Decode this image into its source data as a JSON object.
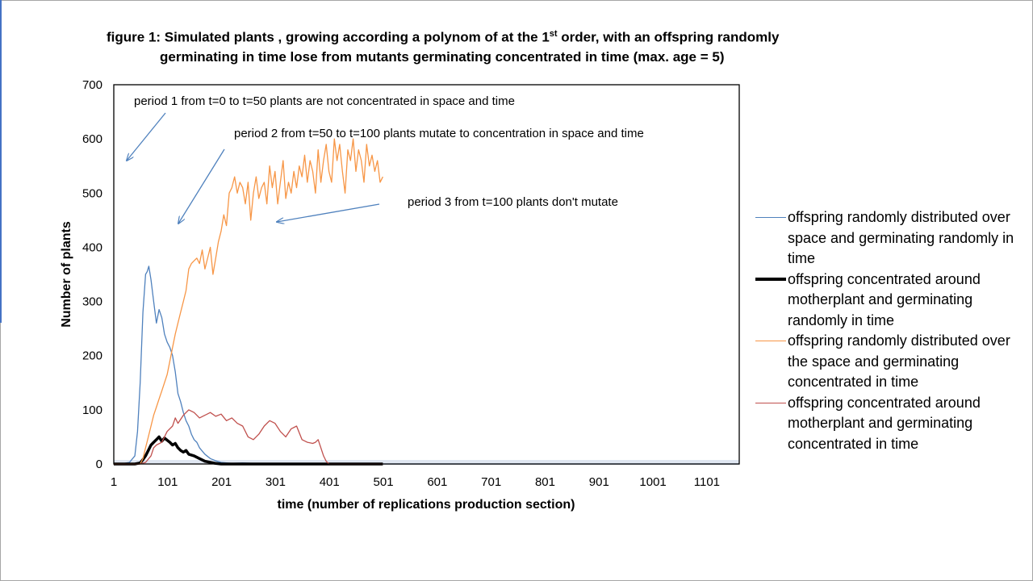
{
  "title": {
    "line1_pre": "figure 1: Simulated  plants , growing according a polynom of at the 1",
    "line1_sup": "st",
    "line1_post": " order, with an offspring randomly",
    "line2": "germinating  in time lose from mutants germinating concentrated  in time  (max. age = 5)"
  },
  "chart_data": {
    "type": "line",
    "xlabel": "time (number of replications production section)",
    "ylabel": "Number of plants",
    "x_tick_labels": [
      "1",
      "101",
      "201",
      "301",
      "401",
      "501",
      "601",
      "701",
      "801",
      "901",
      "1001",
      "1101"
    ],
    "y_tick_labels": [
      "0",
      "100",
      "200",
      "300",
      "400",
      "500",
      "600",
      "700"
    ],
    "xlim": [
      1,
      1161
    ],
    "ylim": [
      0,
      700
    ],
    "series": [
      {
        "name": "offspring randomly distributed over space and germinating randomly in time",
        "color": "#4f81bd",
        "width": 1.3,
        "x": [
          1,
          10,
          20,
          30,
          40,
          45,
          50,
          55,
          60,
          63,
          66,
          70,
          75,
          80,
          85,
          90,
          95,
          100,
          105,
          110,
          115,
          120,
          125,
          130,
          135,
          140,
          145,
          150,
          155,
          160,
          170,
          180,
          190,
          200,
          210,
          220,
          240,
          260,
          280,
          300,
          400,
          500,
          600,
          700,
          800,
          900,
          1000,
          1100,
          1161
        ],
        "y": [
          0,
          0,
          1,
          3,
          15,
          60,
          150,
          280,
          350,
          355,
          365,
          340,
          300,
          260,
          285,
          270,
          240,
          225,
          215,
          200,
          170,
          130,
          115,
          95,
          80,
          70,
          55,
          45,
          40,
          30,
          18,
          10,
          6,
          3,
          2,
          1,
          2,
          1,
          0,
          0,
          0,
          0,
          0,
          0,
          0,
          0,
          0,
          0,
          0
        ]
      },
      {
        "name": "offspring concentrated around motherplant and germinating randomly in time",
        "color": "#000000",
        "width": 3.5,
        "x": [
          1,
          40,
          50,
          55,
          60,
          65,
          70,
          75,
          80,
          85,
          90,
          95,
          100,
          105,
          110,
          115,
          120,
          125,
          130,
          135,
          140,
          150,
          160,
          170,
          180,
          190,
          200,
          210,
          250,
          300,
          400,
          500
        ],
        "y": [
          0,
          0,
          2,
          8,
          15,
          25,
          35,
          40,
          45,
          50,
          42,
          48,
          44,
          40,
          35,
          38,
          30,
          25,
          22,
          25,
          18,
          15,
          10,
          5,
          3,
          1,
          0,
          0,
          0,
          0,
          0,
          0
        ]
      },
      {
        "name": "offspring randomly distributed over the space and germinating concentrated in time",
        "color": "#f79646",
        "width": 1.3,
        "x": [
          1,
          50,
          55,
          60,
          65,
          70,
          75,
          80,
          85,
          90,
          95,
          100,
          105,
          110,
          115,
          120,
          125,
          130,
          135,
          140,
          145,
          150,
          155,
          160,
          165,
          170,
          175,
          180,
          185,
          190,
          195,
          200,
          205,
          210,
          215,
          220,
          225,
          230,
          235,
          240,
          245,
          250,
          255,
          260,
          265,
          270,
          275,
          280,
          285,
          290,
          295,
          300,
          305,
          310,
          315,
          320,
          325,
          330,
          335,
          340,
          345,
          350,
          355,
          360,
          365,
          370,
          375,
          380,
          385,
          390,
          395,
          400,
          405,
          410,
          415,
          420,
          425,
          430,
          435,
          440,
          445,
          450,
          455,
          460,
          465,
          470,
          475,
          480,
          485,
          490,
          495,
          500
        ],
        "y": [
          0,
          0,
          10,
          30,
          50,
          70,
          90,
          105,
          120,
          135,
          150,
          165,
          190,
          215,
          240,
          260,
          280,
          300,
          320,
          360,
          370,
          375,
          380,
          370,
          395,
          360,
          380,
          400,
          350,
          380,
          410,
          430,
          460,
          440,
          500,
          510,
          530,
          500,
          520,
          510,
          480,
          520,
          450,
          500,
          530,
          490,
          510,
          520,
          480,
          550,
          510,
          540,
          480,
          520,
          560,
          490,
          520,
          500,
          540,
          510,
          550,
          530,
          570,
          520,
          560,
          540,
          500,
          580,
          520,
          560,
          590,
          540,
          520,
          600,
          560,
          590,
          540,
          500,
          580,
          560,
          600,
          540,
          580,
          560,
          520,
          590,
          550,
          570,
          540,
          560,
          520,
          530
        ]
      },
      {
        "name": "offspring concentrated around motherplant and germinating concentrated in time",
        "color": "#c0504d",
        "width": 1.3,
        "x": [
          1,
          50,
          60,
          70,
          75,
          80,
          90,
          100,
          110,
          115,
          120,
          130,
          140,
          150,
          160,
          170,
          180,
          190,
          200,
          210,
          220,
          230,
          240,
          250,
          260,
          270,
          280,
          290,
          300,
          310,
          320,
          330,
          340,
          350,
          360,
          370,
          375,
          380,
          385,
          390,
          395,
          400,
          410,
          420,
          500
        ],
        "y": [
          0,
          0,
          3,
          15,
          30,
          35,
          40,
          60,
          70,
          85,
          75,
          90,
          100,
          95,
          85,
          90,
          95,
          88,
          92,
          80,
          85,
          75,
          70,
          50,
          45,
          55,
          70,
          80,
          75,
          60,
          50,
          65,
          70,
          45,
          40,
          38,
          40,
          45,
          30,
          15,
          5,
          0,
          0,
          0,
          0
        ]
      }
    ]
  },
  "annotations": {
    "period1": "period 1 from t=0 to t=50  plants  are not concentrated in space and  time",
    "period2": "period 2 from t=50 to t=100  plants mutate to concentration in space and  time",
    "period3": "period  3 from t=100  plants  don't mutate"
  },
  "legend": [
    {
      "text": "offspring randomly distributed over space and germinating randomly in time",
      "color": "#4f81bd",
      "width": 1.5
    },
    {
      "text": "offspring concentrated around motherplant and germinating randomly in time",
      "color": "#000000",
      "width": 4
    },
    {
      "text": "offspring randomly distributed over the space and germinating concentrated in time",
      "color": "#f79646",
      "width": 1.5
    },
    {
      "text": "offspring concentrated around motherplant and germinating concentrated in time",
      "color": "#c0504d",
      "width": 1.5
    }
  ]
}
